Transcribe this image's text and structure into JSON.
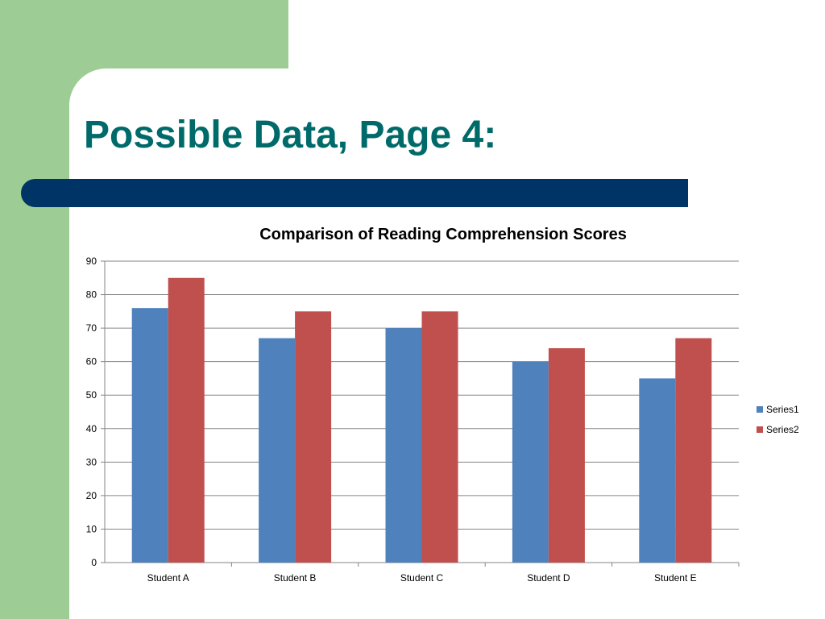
{
  "slide": {
    "title": "Possible Data, Page 4:"
  },
  "colors": {
    "side_green": "#9dcd94",
    "title_bar": "#003366",
    "title_text": "#006a6b"
  },
  "chart_data": {
    "type": "bar",
    "title": "Comparison of Reading Comprehension Scores",
    "xlabel": "",
    "ylabel": "",
    "categories": [
      "Student A",
      "Student B",
      "Student C",
      "Student D",
      "Student E"
    ],
    "series": [
      {
        "name": "Series1",
        "color": "#4f81bd",
        "values": [
          76,
          67,
          70,
          60,
          55
        ]
      },
      {
        "name": "Series2",
        "color": "#c0504d",
        "values": [
          85,
          75,
          75,
          64,
          67
        ]
      }
    ],
    "ylim": [
      0,
      90
    ],
    "yticks": [
      "0",
      "10",
      "20",
      "30",
      "40",
      "50",
      "60",
      "70",
      "80",
      "90"
    ],
    "grid": true,
    "legend": "right"
  }
}
